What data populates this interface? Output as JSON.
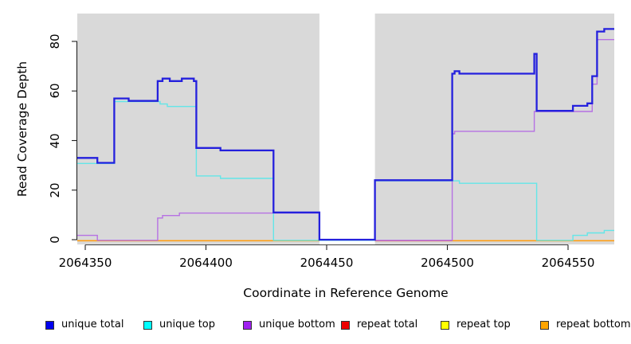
{
  "figure": {
    "background": "#ffffff",
    "plot_background": "#d9d9d9",
    "gap_background": "#ffffff"
  },
  "chart_data": {
    "type": "line",
    "step": "after",
    "title": "",
    "xlabel": "Coordinate in Reference Genome",
    "ylabel": "Read Coverage Depth",
    "xlim": [
      2064346.7,
      2064569.2
    ],
    "ylim": [
      0,
      91
    ],
    "x_ticks": [
      2064350,
      2064400,
      2064450,
      2064500,
      2064550
    ],
    "y_ticks": [
      0,
      20,
      40,
      60,
      80
    ],
    "grid": "off",
    "legend_position": "bottom",
    "gap_region": {
      "from": 2064447,
      "to": 2064470
    },
    "series": [
      {
        "name": "unique total",
        "color": "#2420dd",
        "legend_color": "#0000ee",
        "line_width": 2.3,
        "points": [
          [
            2064346.7,
            33
          ],
          [
            2064355,
            31
          ],
          [
            2064362,
            57
          ],
          [
            2064368,
            56
          ],
          [
            2064380,
            64
          ],
          [
            2064382,
            65
          ],
          [
            2064385,
            64
          ],
          [
            2064390,
            65
          ],
          [
            2064395,
            64
          ],
          [
            2064396,
            37
          ],
          [
            2064406,
            36
          ],
          [
            2064428,
            11
          ],
          [
            2064447,
            0
          ],
          [
            2064470,
            24
          ],
          [
            2064502,
            67
          ],
          [
            2064503,
            68
          ],
          [
            2064505,
            67
          ],
          [
            2064536,
            75
          ],
          [
            2064537,
            52
          ],
          [
            2064552,
            54
          ],
          [
            2064558,
            55
          ],
          [
            2064560,
            66
          ],
          [
            2064562,
            84
          ],
          [
            2064565,
            85
          ]
        ]
      },
      {
        "name": "unique top",
        "color": "#63e6e8",
        "legend_color": "#00ffff",
        "line_width": 1.4,
        "points": [
          [
            2064346.7,
            31
          ],
          [
            2064362,
            56
          ],
          [
            2064381,
            55
          ],
          [
            2064384,
            54
          ],
          [
            2064396,
            26
          ],
          [
            2064406,
            25
          ],
          [
            2064428,
            0
          ],
          [
            2064470,
            24
          ],
          [
            2064505,
            23
          ],
          [
            2064537,
            0
          ],
          [
            2064552,
            2
          ],
          [
            2064558,
            3
          ],
          [
            2064565,
            4
          ]
        ]
      },
      {
        "name": "unique bottom",
        "color": "#b671e3",
        "legend_color": "#a020f0",
        "line_width": 1.4,
        "points": [
          [
            2064346.7,
            2
          ],
          [
            2064355,
            0
          ],
          [
            2064380,
            9
          ],
          [
            2064382,
            10
          ],
          [
            2064389,
            11
          ],
          [
            2064447,
            0
          ],
          [
            2064502,
            43
          ],
          [
            2064503,
            44
          ],
          [
            2064536,
            52
          ],
          [
            2064560,
            63
          ],
          [
            2064562,
            81
          ]
        ]
      },
      {
        "name": "repeat total",
        "color": "#d85f6d",
        "legend_color": "#ee0000",
        "line_width": 1.4,
        "points": [
          [
            2064346.7,
            0
          ]
        ],
        "visible_span": [
          2064470,
          2064502
        ]
      },
      {
        "name": "repeat top",
        "color": "#f0f020",
        "legend_color": "#ffff00",
        "line_width": 1.4,
        "points": [
          [
            2064346.7,
            0
          ]
        ],
        "draw_spans": [
          [
            2064346.7,
            2064447
          ],
          [
            2064470,
            2064569.2
          ]
        ]
      },
      {
        "name": "repeat bottom",
        "color": "#ff9e14",
        "legend_color": "#ffa500",
        "line_width": 1.7,
        "points": [
          [
            2064346.7,
            0
          ]
        ],
        "draw_spans": [
          [
            2064346.7,
            2064447
          ],
          [
            2064470,
            2064569.2
          ]
        ]
      }
    ]
  },
  "legend": {
    "items": [
      {
        "label": "unique total",
        "color": "#0000ee"
      },
      {
        "label": "unique top",
        "color": "#00ffff"
      },
      {
        "label": "unique bottom",
        "color": "#a020f0"
      },
      {
        "label": "repeat total",
        "color": "#ee0000"
      },
      {
        "label": "repeat top",
        "color": "#ffff00"
      },
      {
        "label": "repeat bottom",
        "color": "#ffa500"
      }
    ]
  }
}
